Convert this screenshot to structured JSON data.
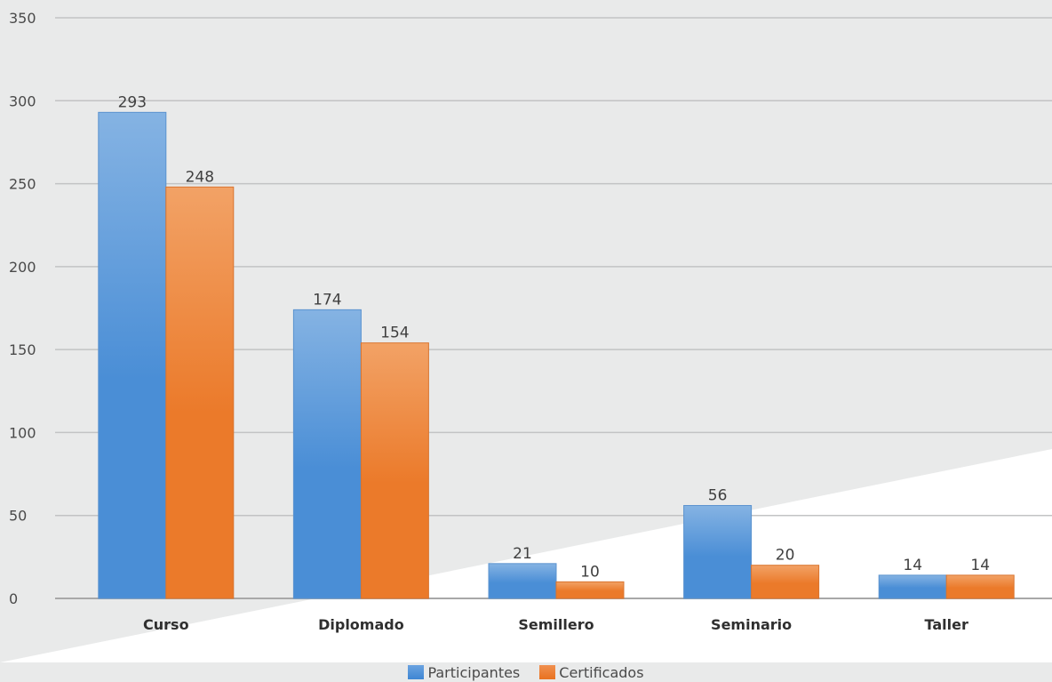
{
  "chart_data": {
    "type": "bar",
    "categories": [
      "Curso",
      "Diplomado",
      "Semillero",
      "Seminario",
      "Taller"
    ],
    "series": [
      {
        "name": "Participantes",
        "values": [
          293,
          174,
          21,
          56,
          14
        ],
        "color": "#4a8ed6",
        "color_light": "#85b3e3"
      },
      {
        "name": "Certificados",
        "values": [
          248,
          154,
          10,
          20,
          14
        ],
        "color": "#eb7a2a",
        "color_light": "#f2a266"
      }
    ],
    "yticks": [
      0,
      50,
      100,
      150,
      200,
      250,
      300,
      350
    ],
    "ylim": [
      0,
      350
    ],
    "grid": true,
    "legend_position": "bottom",
    "title": "",
    "xlabel": "",
    "ylabel": ""
  }
}
